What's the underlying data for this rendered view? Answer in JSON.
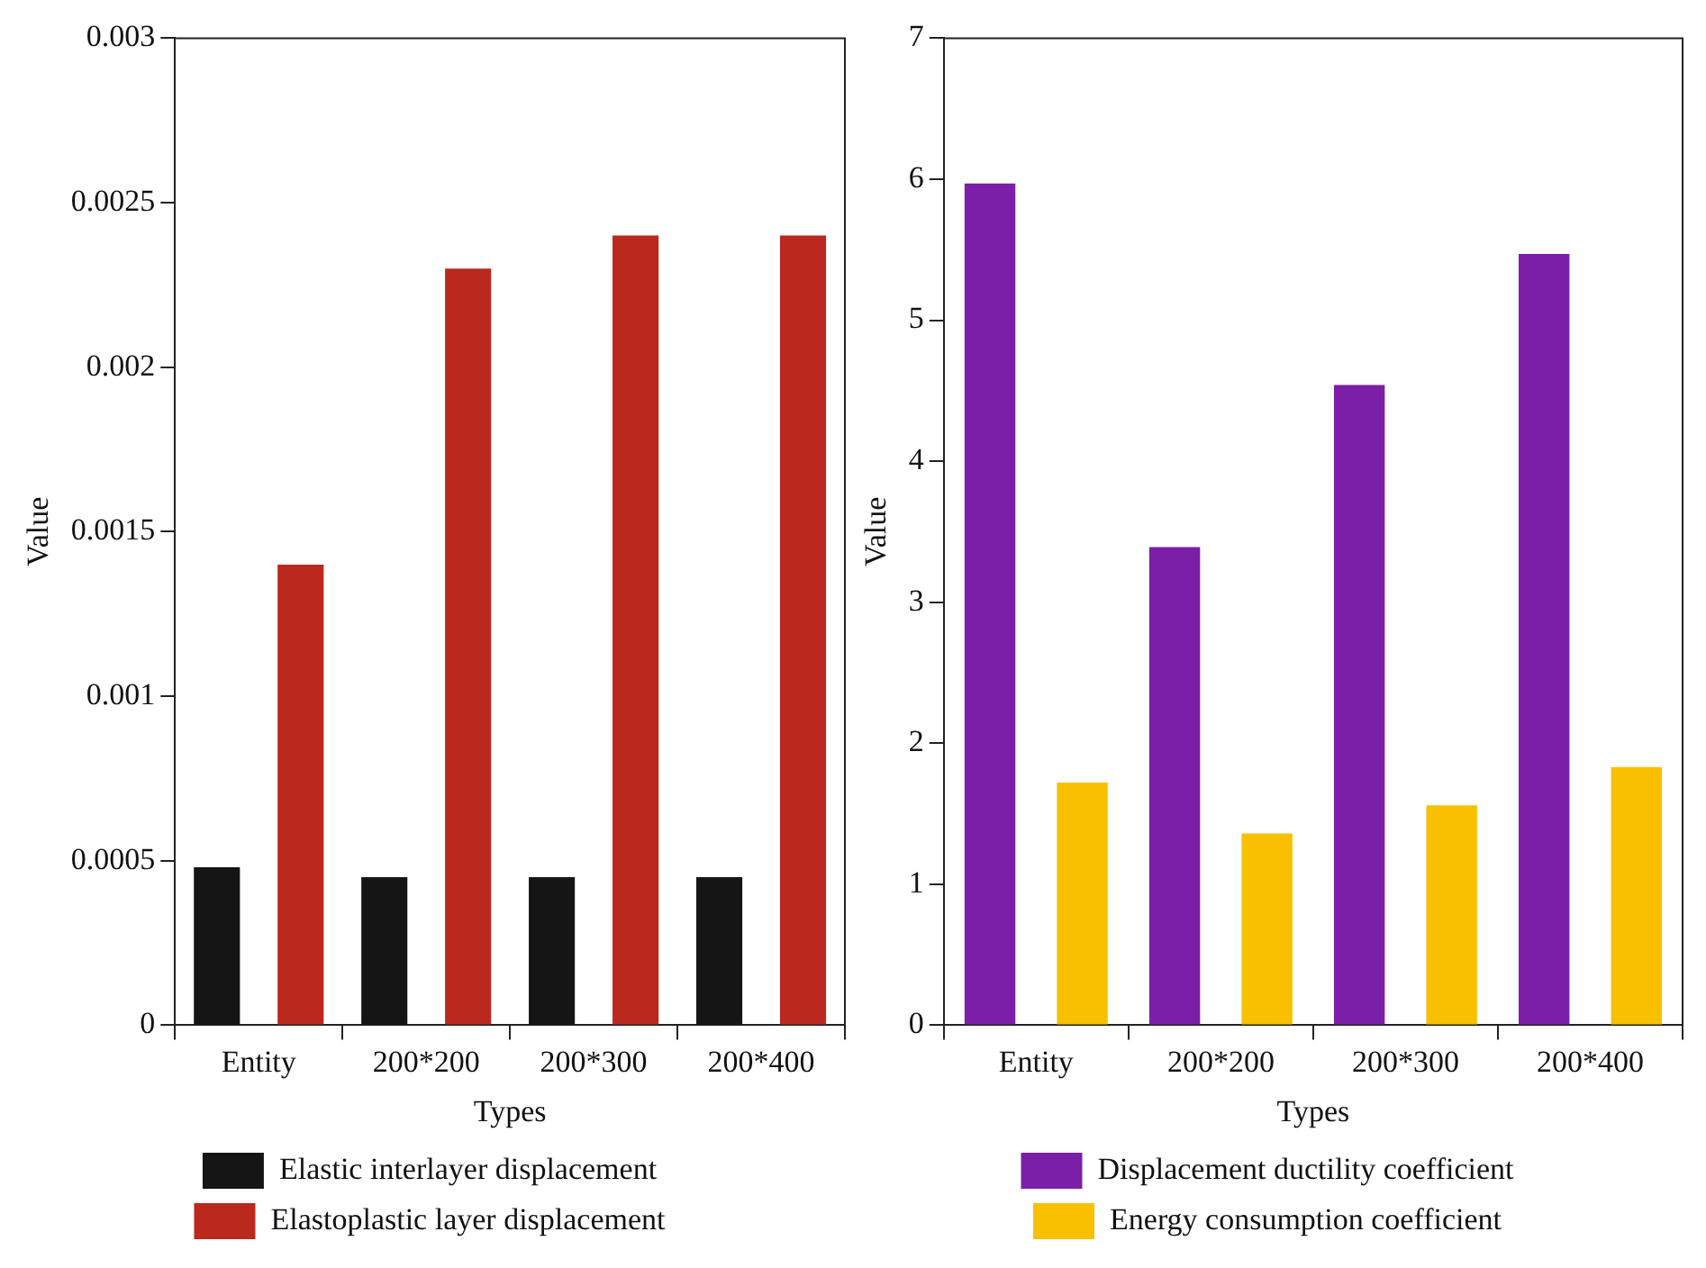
{
  "chart_data": [
    {
      "type": "bar",
      "xlabel": "Types",
      "ylabel": "Value",
      "categories": [
        "Entity",
        "200*200",
        "200*300",
        "200*400"
      ],
      "series": [
        {
          "name": "Elastic interlayer displacement",
          "color": "#151515",
          "values": [
            0.00048,
            0.00045,
            0.00045,
            0.00045
          ]
        },
        {
          "name": "Elastoplastic layer displacement",
          "color": "#bb281e",
          "values": [
            0.0014,
            0.0023,
            0.0024,
            0.0024
          ]
        }
      ],
      "ylim": [
        0,
        0.003
      ],
      "yticks": [
        0,
        0.0005,
        0.001,
        0.0015,
        0.002,
        0.0025,
        0.003
      ],
      "grid": false,
      "legend": "bottom"
    },
    {
      "type": "bar",
      "xlabel": "Types",
      "ylabel": "Value",
      "categories": [
        "Entity",
        "200*200",
        "200*300",
        "200*400"
      ],
      "series": [
        {
          "name": "Displacement ductility coefficient",
          "color": "#7b1fa9",
          "values": [
            5.97,
            3.39,
            4.54,
            5.47
          ]
        },
        {
          "name": "Energy consumption coefficient",
          "color": "#f8c000",
          "values": [
            1.72,
            1.36,
            1.56,
            1.83
          ]
        }
      ],
      "ylim": [
        0,
        7
      ],
      "yticks": [
        0,
        1,
        2,
        3,
        4,
        5,
        6,
        7
      ],
      "grid": false,
      "legend": "bottom"
    }
  ]
}
